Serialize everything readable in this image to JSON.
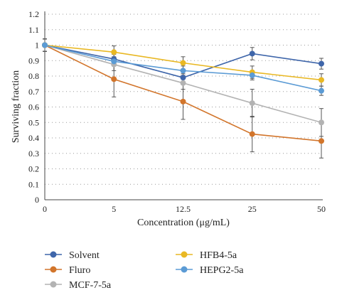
{
  "chart_data": {
    "type": "line",
    "xlabel": "Concentration (μg/mL)",
    "ylabel": "Surviving fraction",
    "categories": [
      "0",
      "5",
      "12.5",
      "25",
      "50"
    ],
    "yticks": [
      "0",
      "0.1",
      "0.2",
      "0.3",
      "0.4",
      "0.5",
      "0.6",
      "0.7",
      "0.8",
      "0.9",
      "1",
      "1.1",
      "1.2"
    ],
    "ylim": [
      0,
      1.2
    ],
    "grid": "horizontal dotted",
    "legend_position": "bottom",
    "series": [
      {
        "name": "Solvent",
        "color": "#3f66aa",
        "values": [
          1.0,
          0.91,
          0.79,
          0.945,
          0.88
        ],
        "errors": [
          0.04,
          0.03,
          0.025,
          0.04,
          0.035
        ]
      },
      {
        "name": "Fluro",
        "color": "#d2752b",
        "values": [
          1.0,
          0.78,
          0.635,
          0.425,
          0.38
        ],
        "errors": [
          0.04,
          0.115,
          0.115,
          0.115,
          0.11
        ]
      },
      {
        "name": "MCF-7-5a",
        "color": "#b3b3b3",
        "values": [
          1.0,
          0.875,
          0.755,
          0.625,
          0.5
        ],
        "errors": [
          0.04,
          0.04,
          0.04,
          0.09,
          0.09
        ]
      },
      {
        "name": "HFB4-5a",
        "color": "#e9b824",
        "values": [
          1.0,
          0.955,
          0.885,
          0.825,
          0.775
        ],
        "errors": [
          0.04,
          0.04,
          0.04,
          0.04,
          0.04
        ]
      },
      {
        "name": "HEPG2-5a",
        "color": "#5b9bd5",
        "values": [
          1.0,
          0.895,
          0.835,
          0.805,
          0.705
        ],
        "errors": [
          0.04,
          0.03,
          0.03,
          0.03,
          0.03
        ]
      }
    ]
  }
}
